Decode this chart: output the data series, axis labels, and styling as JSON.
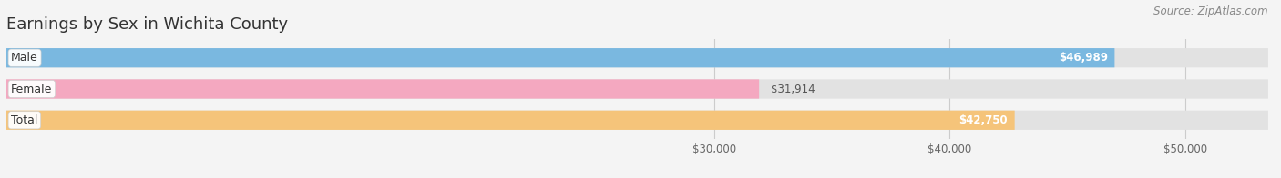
{
  "title": "Earnings by Sex in Wichita County",
  "source": "Source: ZipAtlas.com",
  "categories": [
    "Male",
    "Female",
    "Total"
  ],
  "values": [
    46989,
    31914,
    42750
  ],
  "bar_colors": [
    "#7ab8e0",
    "#f4a8c0",
    "#f5c47a"
  ],
  "label_values": [
    "$46,989",
    "$31,914",
    "$42,750"
  ],
  "label_inside": [
    true,
    false,
    true
  ],
  "xmin": 0,
  "xmax": 53500,
  "xticks": [
    30000,
    40000,
    50000
  ],
  "xtick_labels": [
    "$30,000",
    "$40,000",
    "$50,000"
  ],
  "bg_color": "#f4f4f4",
  "bar_bg_color": "#e2e2e2",
  "title_fontsize": 13,
  "source_fontsize": 8.5,
  "bar_height": 0.62,
  "figsize": [
    14.06,
    1.96
  ],
  "dpi": 100
}
